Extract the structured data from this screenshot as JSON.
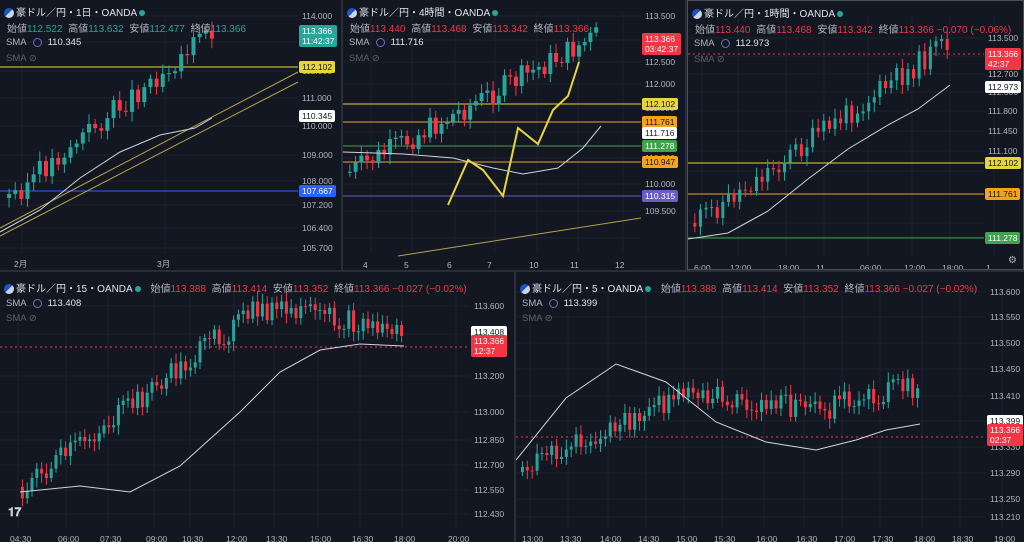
{
  "colors": {
    "bg": "#131722",
    "up": "#26a69a",
    "down": "#f23645",
    "sma": "#d1d4dc",
    "yellow": "#e8d53a",
    "orange": "#f7a21b",
    "green": "#3fa34d",
    "blue": "#2962ff",
    "purple": "#6b5bc4",
    "olive": "#b5a24a"
  },
  "panes": [
    {
      "title": "豪ドル／円・1日・OANDA",
      "ohlc": [
        {
          "k": "始値",
          "v": "112.522"
        },
        {
          "k": "高値",
          "v": "113.632"
        },
        {
          "k": "安値",
          "v": "112.477"
        },
        {
          "k": "終値",
          "v": "113.366"
        }
      ],
      "change": "",
      "sma_label": "SMA",
      "sma_value": "110.345",
      "price_ticks": [
        "114.000",
        "113.000",
        "112.000",
        "111.000",
        "110.000",
        "109.000",
        "108.000",
        "107.200",
        "106.400",
        "105.700"
      ],
      "time_ticks": [
        "2月",
        "3月"
      ],
      "tags": [
        {
          "text": "113.366",
          "sub": "11:42:37",
          "color": "#26a69a"
        },
        {
          "text": "112.102",
          "color": "#e8d53a"
        },
        {
          "text": "110.345",
          "color": "#ffffff"
        },
        {
          "text": "107.667",
          "color": "#2962ff"
        }
      ]
    },
    {
      "title": "豪ドル／円・4時間・OANDA",
      "ohlc": [
        {
          "k": "始値",
          "v": "113.440"
        },
        {
          "k": "高値",
          "v": "113.468"
        },
        {
          "k": "安値",
          "v": "113.342"
        },
        {
          "k": "終値",
          "v": "113.366"
        }
      ],
      "change": "",
      "sma_label": "SMA",
      "sma_value": "111.716",
      "price_ticks": [
        "113.500",
        "113.000",
        "112.500",
        "112.000",
        "111.500",
        "111.000",
        "110.500",
        "110.000",
        "109.500"
      ],
      "time_ticks": [
        "4",
        "5",
        "6",
        "7",
        "10",
        "11",
        "12"
      ],
      "tags": [
        {
          "text": "113.366",
          "sub": "03:42:37",
          "color": "#f23645"
        },
        {
          "text": "112.102",
          "color": "#e8d53a"
        },
        {
          "text": "111.761",
          "color": "#f7a21b"
        },
        {
          "text": "111.716",
          "color": "#ffffff"
        },
        {
          "text": "111.278",
          "color": "#3fa34d"
        },
        {
          "text": "110.947",
          "color": "#f7a21b"
        },
        {
          "text": "110.315",
          "color": "#6b5bc4"
        }
      ]
    },
    {
      "title": "豪ドル／円・1時間・OANDA",
      "ohlc": [
        {
          "k": "始値",
          "v": "113.440"
        },
        {
          "k": "高値",
          "v": "113.468"
        },
        {
          "k": "安値",
          "v": "113.342"
        },
        {
          "k": "終値",
          "v": "113.366"
        }
      ],
      "change": "−0.070 (−0.06%)",
      "sma_label": "SMA",
      "sma_value": "112.973",
      "price_ticks": [
        "113.500",
        "113.100",
        "112.700",
        "112.300",
        "111.800",
        "111.450",
        "111.100"
      ],
      "time_ticks": [
        "6:00",
        "12:00",
        "18:00",
        "11",
        "06:00",
        "12:00",
        "18:00",
        "1"
      ],
      "tags": [
        {
          "text": "113.366",
          "sub": "42:37",
          "color": "#f23645"
        },
        {
          "text": "112.973",
          "color": "#ffffff"
        },
        {
          "text": "112.102",
          "color": "#e8d53a"
        },
        {
          "text": "111.761",
          "color": "#f7a21b"
        },
        {
          "text": "111.278",
          "color": "#3fa34d"
        }
      ]
    },
    {
      "title": "豪ドル／円・15・OANDA",
      "ohlc": [
        {
          "k": "始値",
          "v": "113.388"
        },
        {
          "k": "高値",
          "v": "113.414"
        },
        {
          "k": "安値",
          "v": "113.352"
        },
        {
          "k": "終値",
          "v": "113.366"
        }
      ],
      "change": "−0.027 (−0.02%)",
      "sma_label": "SMA",
      "sma_value": "113.408",
      "price_ticks": [
        "113.600",
        "113.400",
        "113.200",
        "113.000",
        "112.850",
        "112.700",
        "112.550",
        "112.430"
      ],
      "time_ticks": [
        "04:30",
        "06:00",
        "07:30",
        "09:00",
        "10:30",
        "12:00",
        "13:30",
        "15:00",
        "16:30",
        "18:00",
        "20:00"
      ],
      "tags": [
        {
          "text": "113.408",
          "color": "#ffffff"
        },
        {
          "text": "113.366",
          "sub": "12:37",
          "color": "#f23645"
        }
      ]
    },
    {
      "title": "豪ドル／円・5・OANDA",
      "ohlc": [
        {
          "k": "始値",
          "v": "113.388"
        },
        {
          "k": "高値",
          "v": "113.414"
        },
        {
          "k": "安値",
          "v": "113.352"
        },
        {
          "k": "終値",
          "v": "113.366"
        }
      ],
      "change": "−0.027 (−0.02%)",
      "sma_label": "SMA",
      "sma_value": "113.399",
      "price_ticks": [
        "113.600",
        "113.550",
        "113.500",
        "113.450",
        "113.410",
        "113.370",
        "113.330",
        "113.290",
        "113.250",
        "113.210"
      ],
      "time_ticks": [
        "13:00",
        "13:30",
        "14:00",
        "14:30",
        "15:00",
        "15:30",
        "16:00",
        "16:30",
        "17:00",
        "17:30",
        "18:00",
        "18:30",
        "19:00"
      ],
      "tags": [
        {
          "text": "113.399",
          "color": "#ffffff"
        },
        {
          "text": "113.366",
          "sub": "02:37",
          "color": "#f23645"
        }
      ]
    }
  ]
}
